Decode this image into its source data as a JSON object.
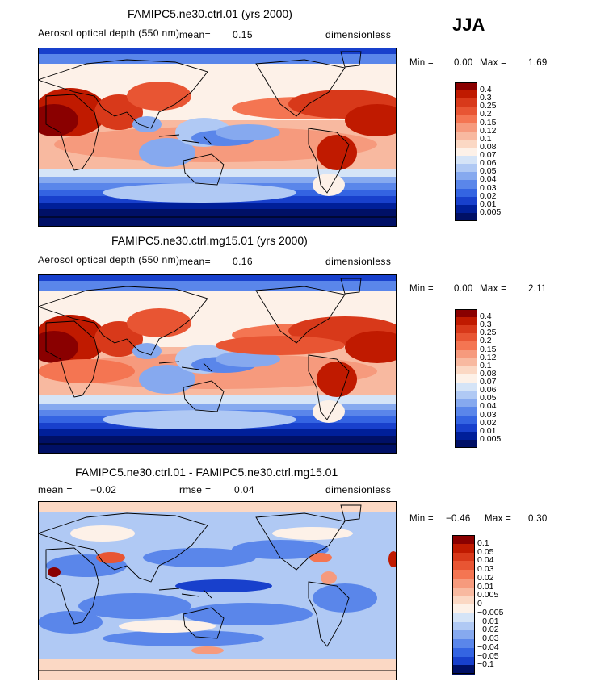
{
  "season": "JJA",
  "chart_data": [
    {
      "type": "heatmap",
      "title": "FAMIPC5.ne30.ctrl.01 (yrs 2000)",
      "variable": "Aerosol optical depth (550 nm)",
      "mean_label": "mean=",
      "mean": "0.15",
      "units": "dimensionless",
      "min_label": "Min =",
      "min": "0.00",
      "max_label": "Max =",
      "max": "1.69",
      "levels": [
        "0.4",
        "0.3",
        "0.25",
        "0.2",
        "0.15",
        "0.12",
        "0.1",
        "0.08",
        "0.07",
        "0.06",
        "0.05",
        "0.04",
        "0.03",
        "0.02",
        "0.01",
        "0.005"
      ],
      "colors": [
        "#8a0000",
        "#c01a00",
        "#d8391a",
        "#e85533",
        "#f47552",
        "#f69a7d",
        "#f8b9a0",
        "#fbd8c4",
        "#fdf1e8",
        "#d5e4f7",
        "#b0c9f4",
        "#86a9ef",
        "#5a86ea",
        "#3464e2",
        "#1840cc",
        "#001f99",
        "#001066"
      ]
    },
    {
      "type": "heatmap",
      "title": "FAMIPC5.ne30.ctrl.mg15.01 (yrs 2000)",
      "variable": "Aerosol optical depth (550 nm)",
      "mean_label": "mean=",
      "mean": "0.16",
      "units": "dimensionless",
      "min_label": "Min =",
      "min": "0.00",
      "max_label": "Max =",
      "max": "2.11",
      "levels": [
        "0.4",
        "0.3",
        "0.25",
        "0.2",
        "0.15",
        "0.12",
        "0.1",
        "0.08",
        "0.07",
        "0.06",
        "0.05",
        "0.04",
        "0.03",
        "0.02",
        "0.01",
        "0.005"
      ],
      "colors": [
        "#8a0000",
        "#c01a00",
        "#d8391a",
        "#e85533",
        "#f47552",
        "#f69a7d",
        "#f8b9a0",
        "#fbd8c4",
        "#fdf1e8",
        "#d5e4f7",
        "#b0c9f4",
        "#86a9ef",
        "#5a86ea",
        "#3464e2",
        "#1840cc",
        "#001f99",
        "#001066"
      ]
    },
    {
      "type": "heatmap",
      "title": "FAMIPC5.ne30.ctrl.01 - FAMIPC5.ne30.ctrl.mg15.01",
      "mean_label": "mean =",
      "mean": "−0.02",
      "rmse_label": "rmse =",
      "rmse": "0.04",
      "units": "dimensionless",
      "min_label": "Min =",
      "min": "−0.46",
      "max_label": "Max =",
      "max": "0.30",
      "levels": [
        "0.1",
        "0.05",
        "0.04",
        "0.03",
        "0.02",
        "0.01",
        "0.005",
        "0",
        "−0.005",
        "−0.01",
        "−0.02",
        "−0.03",
        "−0.04",
        "−0.05",
        "−0.1"
      ],
      "colors": [
        "#8a0000",
        "#c01a00",
        "#d8391a",
        "#e85533",
        "#f47552",
        "#f69a7d",
        "#f8b9a0",
        "#fbd8c4",
        "#fdf1e8",
        "#d5e4f7",
        "#b0c9f4",
        "#86a9ef",
        "#5a86ea",
        "#3464e2",
        "#1840cc",
        "#001066"
      ]
    }
  ]
}
